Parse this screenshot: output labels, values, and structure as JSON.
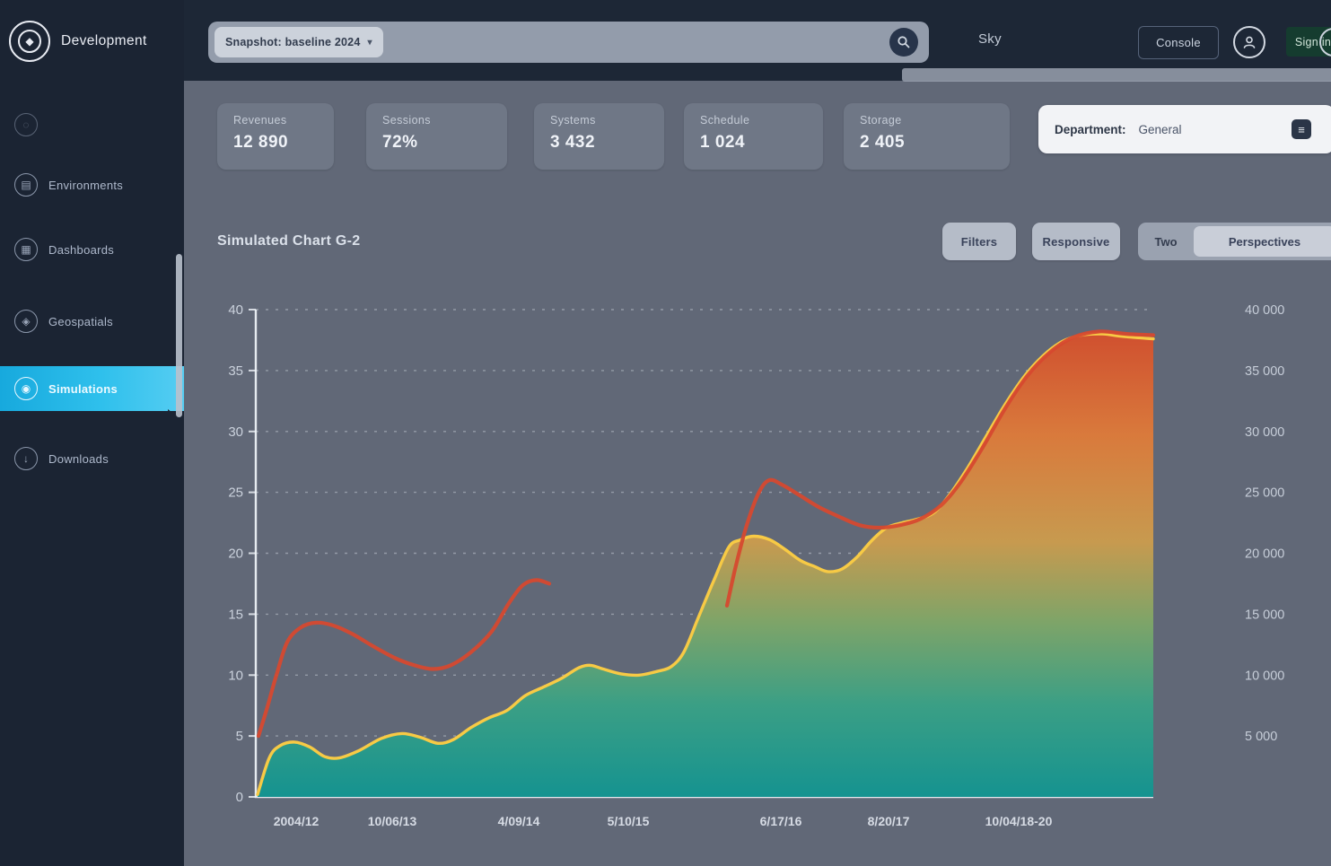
{
  "app": {
    "title": "Development"
  },
  "sidebar": {
    "items": [
      {
        "label": "",
        "icon": "◌"
      },
      {
        "label": "Environments",
        "icon": "▤"
      },
      {
        "label": "Dashboards",
        "icon": "▦"
      },
      {
        "label": "Geospatials",
        "icon": "◈"
      },
      {
        "label": "Simulations",
        "icon": "◉"
      },
      {
        "label": "Downloads",
        "icon": "↓"
      }
    ],
    "active_item": "Simulations",
    "active_color": "#2fc0ec"
  },
  "topbar": {
    "search_chip": "Snapshot: baseline 2024",
    "chip_caret": "▾",
    "nav_link": "Sky",
    "console_button": "Console",
    "signin_button": "Sign in"
  },
  "stats": {
    "cards": [
      {
        "label": "Revenues",
        "value": "12 890"
      },
      {
        "label": "Sessions",
        "value": "72%"
      },
      {
        "label": "Systems",
        "value": "3 432"
      },
      {
        "label": "Schedule",
        "value": "1 024"
      },
      {
        "label": "Storage",
        "value": "2 405"
      }
    ],
    "department_filter": {
      "label": "Department:",
      "value": "General",
      "icon": "≡"
    }
  },
  "chart_header": {
    "title": "Simulated Chart G-2",
    "filters_button": "Filters",
    "responsive_button": "Responsive",
    "segment_left": "Two",
    "segment_right": "Perspectives"
  },
  "chart_data": {
    "type": "area",
    "title": "Simulated Chart G-2",
    "xlabel": "",
    "ylabel": "",
    "ylim": [
      0,
      40
    ],
    "y2lim": [
      0,
      40000
    ],
    "grid": "dashed-horizontal",
    "legend": "none",
    "grid_values": [
      40,
      35,
      30,
      25,
      20,
      15,
      10,
      5
    ],
    "left_ticks": [
      {
        "label": "40",
        "v": 40
      },
      {
        "label": "35",
        "v": 35
      },
      {
        "label": "30",
        "v": 30
      },
      {
        "label": "25",
        "v": 25
      },
      {
        "label": "20",
        "v": 20
      },
      {
        "label": "15",
        "v": 15
      },
      {
        "label": "10",
        "v": 10
      },
      {
        "label": "5",
        "v": 5
      },
      {
        "label": "0",
        "v": 0
      }
    ],
    "right_ticks": [
      {
        "label": "40 000",
        "v": 40
      },
      {
        "label": "35 000",
        "v": 35
      },
      {
        "label": "30 000",
        "v": 30
      },
      {
        "label": "25 000",
        "v": 25
      },
      {
        "label": "20 000",
        "v": 20
      },
      {
        "label": "15 000",
        "v": 15
      },
      {
        "label": "10 000",
        "v": 10
      },
      {
        "label": "5 000",
        "v": 5
      }
    ],
    "x_ticks": [
      {
        "label": "2004/12",
        "t": 4.5
      },
      {
        "label": "10/06/13",
        "t": 15.2
      },
      {
        "label": "4/09/14",
        "t": 29.3
      },
      {
        "label": "5/10/15",
        "t": 41.5
      },
      {
        "label": "6/17/16",
        "t": 58.5
      },
      {
        "label": "8/20/17",
        "t": 70.5
      },
      {
        "label": "10/04/18-20",
        "t": 85
      }
    ],
    "series": [
      {
        "name": "simulated-output",
        "kind": "area",
        "line_color": "#f7ca45",
        "gradient": [
          {
            "off": 0,
            "color": "#d0502f"
          },
          {
            "off": 0.22,
            "color": "#d97a3c"
          },
          {
            "off": 0.45,
            "color": "#c79a4f"
          },
          {
            "off": 0.62,
            "color": "#7fa468"
          },
          {
            "off": 0.8,
            "color": "#3b9f85"
          },
          {
            "off": 1,
            "color": "#159390"
          }
        ],
        "points": [
          [
            0.2,
            0.2
          ],
          [
            1.5,
            3.2
          ],
          [
            2.7,
            4.2
          ],
          [
            4.3,
            4.5
          ],
          [
            6,
            4.1
          ],
          [
            7.7,
            3.3
          ],
          [
            9.3,
            3.2
          ],
          [
            11.5,
            3.8
          ],
          [
            14,
            4.8
          ],
          [
            16.3,
            5.2
          ],
          [
            18.3,
            4.9
          ],
          [
            20.3,
            4.4
          ],
          [
            22,
            4.7
          ],
          [
            24,
            5.7
          ],
          [
            26,
            6.5
          ],
          [
            28,
            7.1
          ],
          [
            30,
            8.3
          ],
          [
            32,
            9
          ],
          [
            34,
            9.7
          ],
          [
            36,
            10.6
          ],
          [
            37.3,
            10.8
          ],
          [
            38.7,
            10.5
          ],
          [
            40.7,
            10.1
          ],
          [
            42.7,
            10
          ],
          [
            44.7,
            10.3
          ],
          [
            46.3,
            10.7
          ],
          [
            47.7,
            11.9
          ],
          [
            49.3,
            14.7
          ],
          [
            51,
            17.7
          ],
          [
            52.7,
            20.5
          ],
          [
            54,
            21.1
          ],
          [
            55.5,
            21.4
          ],
          [
            57.3,
            21.1
          ],
          [
            59,
            20.3
          ],
          [
            60.7,
            19.4
          ],
          [
            62.3,
            18.9
          ],
          [
            63.7,
            18.5
          ],
          [
            65.3,
            18.7
          ],
          [
            67,
            19.7
          ],
          [
            68.7,
            21.1
          ],
          [
            70.3,
            22.1
          ],
          [
            72,
            22.5
          ],
          [
            73.7,
            22.8
          ],
          [
            75.5,
            23.3
          ],
          [
            77.3,
            24.8
          ],
          [
            79.3,
            27
          ],
          [
            81.3,
            29.5
          ],
          [
            83.3,
            32
          ],
          [
            85.5,
            34.4
          ],
          [
            87.7,
            36.2
          ],
          [
            89.9,
            37.4
          ],
          [
            92,
            37.9
          ],
          [
            94.3,
            38
          ],
          [
            96.7,
            37.8
          ],
          [
            100,
            37.6
          ]
        ]
      },
      {
        "name": "baseline",
        "kind": "line",
        "color": "#d6492f",
        "segments": [
          [
            [
              0.3,
              5
            ],
            [
              1.3,
              7.4
            ],
            [
              2.3,
              10
            ],
            [
              3.5,
              12.7
            ],
            [
              5,
              13.9
            ],
            [
              6.7,
              14.3
            ],
            [
              8.5,
              14.1
            ],
            [
              10.7,
              13.4
            ],
            [
              13,
              12.4
            ],
            [
              15.5,
              11.4
            ],
            [
              17.7,
              10.8
            ],
            [
              19.7,
              10.5
            ],
            [
              21.7,
              10.8
            ],
            [
              24,
              11.9
            ],
            [
              26.3,
              13.6
            ],
            [
              28.2,
              15.9
            ],
            [
              29.8,
              17.4
            ],
            [
              31.3,
              17.8
            ],
            [
              32.7,
              17.5
            ]
          ],
          [
            [
              52.5,
              15.7
            ],
            [
              53.5,
              19
            ],
            [
              54.7,
              22.3
            ],
            [
              56,
              24.9
            ],
            [
              57.2,
              26
            ],
            [
              58.7,
              25.6
            ],
            [
              60.5,
              24.8
            ],
            [
              62.7,
              23.8
            ],
            [
              65,
              23
            ],
            [
              67.3,
              22.3
            ],
            [
              69.5,
              22.1
            ],
            [
              71.7,
              22.3
            ],
            [
              74,
              22.8
            ],
            [
              76.3,
              23.9
            ],
            [
              78.5,
              25.8
            ],
            [
              81,
              28.7
            ],
            [
              83.5,
              31.9
            ],
            [
              86,
              34.6
            ],
            [
              88.5,
              36.5
            ],
            [
              91,
              37.7
            ],
            [
              94,
              38.2
            ],
            [
              97,
              38
            ],
            [
              100,
              37.9
            ]
          ]
        ]
      }
    ]
  }
}
